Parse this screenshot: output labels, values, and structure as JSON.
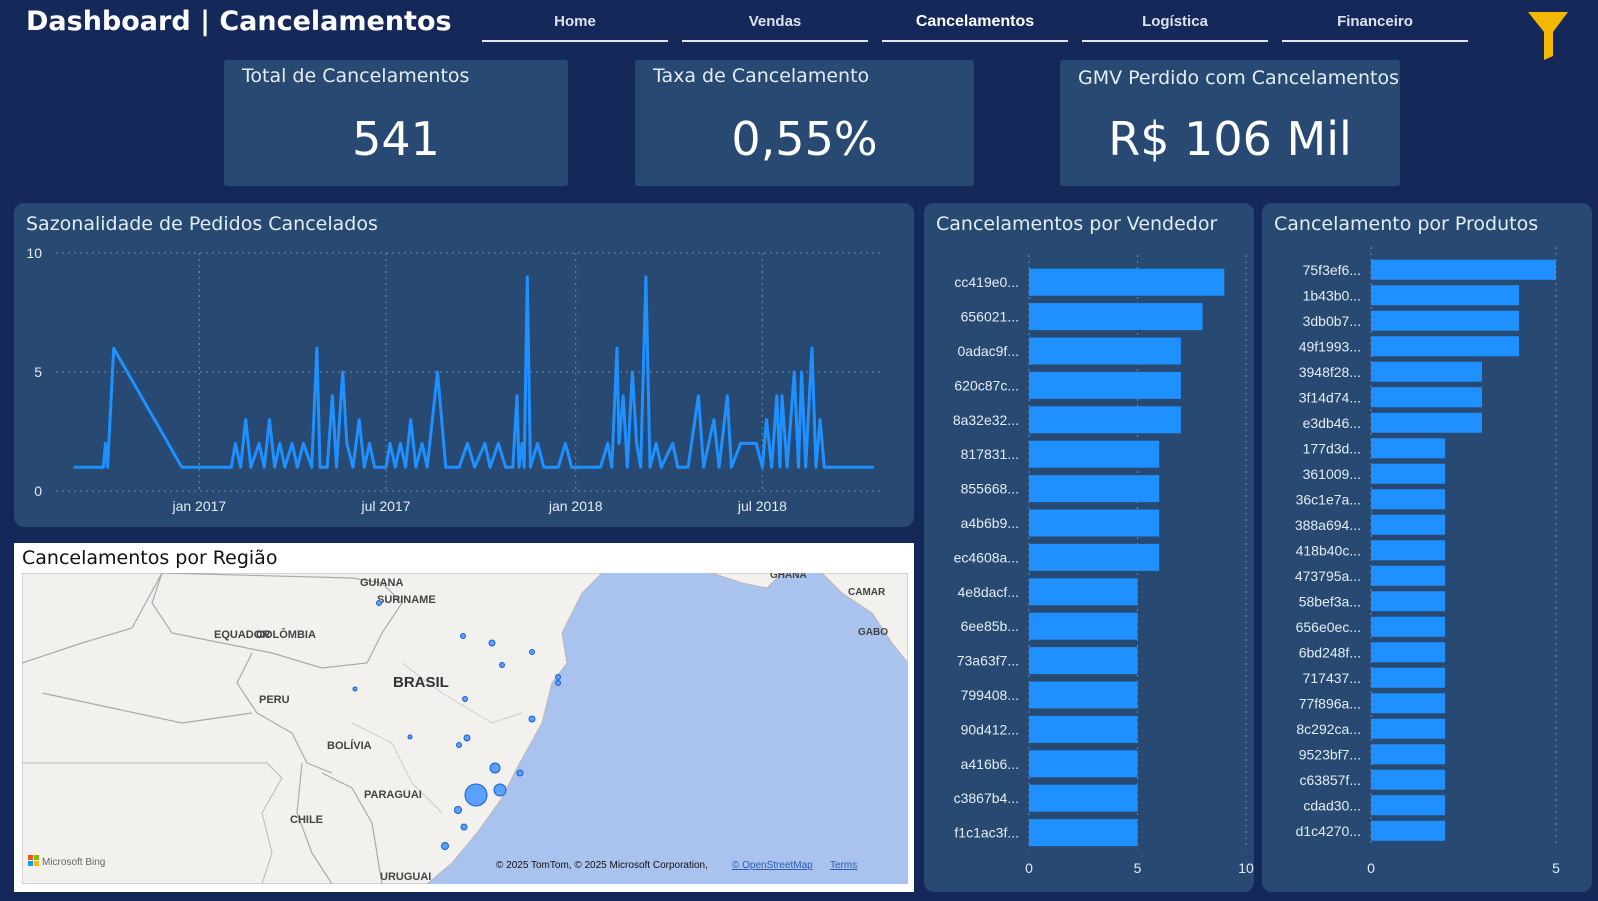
{
  "header": {
    "title": "Dashboard | Cancelamentos",
    "nav": [
      {
        "label": "Home",
        "active": false
      },
      {
        "label": "Vendas",
        "active": false
      },
      {
        "label": "Cancelamentos",
        "active": true
      },
      {
        "label": "Logística",
        "active": false
      },
      {
        "label": "Financeiro",
        "active": false
      }
    ],
    "filter_icon": "funnel-icon",
    "filter_color": "#f5b800"
  },
  "kpis": [
    {
      "label": "Total de Cancelamentos",
      "value": "541"
    },
    {
      "label": "Taxa de Cancelamento",
      "value": "0,55%"
    },
    {
      "label": "GMV Perdido com Cancelamentos",
      "value": "R$ 106 Mil"
    }
  ],
  "colors": {
    "accent": "#1e90ff",
    "card": "#284a72",
    "background": "#14295a"
  },
  "seasonality": {
    "title": "Sazonalidade de Pedidos Cancelados",
    "chart_data": {
      "type": "line",
      "y_ticks": [
        "0",
        "5",
        "10"
      ],
      "ylim": [
        0,
        10
      ],
      "x_tick_labels": [
        "jan 2017",
        "jul 2017",
        "jan 2018",
        "jul 2018"
      ],
      "x_ticks": [
        "2017-01-01",
        "2017-07-01",
        "2018-01-01",
        "2018-07-01"
      ],
      "xlim": [
        "2016-08-15",
        "2018-10-25"
      ],
      "points": [
        [
          "2016-09-01",
          1
        ],
        [
          "2016-09-30",
          1
        ],
        [
          "2016-10-02",
          2
        ],
        [
          "2016-10-04",
          1
        ],
        [
          "2016-10-10",
          6
        ],
        [
          "2016-12-15",
          1
        ],
        [
          "2017-01-20",
          1
        ],
        [
          "2017-02-01",
          1
        ],
        [
          "2017-02-05",
          2
        ],
        [
          "2017-02-10",
          1
        ],
        [
          "2017-02-15",
          3
        ],
        [
          "2017-02-20",
          1
        ],
        [
          "2017-02-28",
          2
        ],
        [
          "2017-03-05",
          1
        ],
        [
          "2017-03-10",
          3
        ],
        [
          "2017-03-15",
          1
        ],
        [
          "2017-03-20",
          2
        ],
        [
          "2017-03-25",
          1
        ],
        [
          "2017-04-01",
          2
        ],
        [
          "2017-04-06",
          1
        ],
        [
          "2017-04-12",
          2
        ],
        [
          "2017-04-20",
          1
        ],
        [
          "2017-04-25",
          6
        ],
        [
          "2017-04-28",
          1
        ],
        [
          "2017-05-05",
          1
        ],
        [
          "2017-05-10",
          4
        ],
        [
          "2017-05-14",
          1
        ],
        [
          "2017-05-20",
          5
        ],
        [
          "2017-05-24",
          2
        ],
        [
          "2017-05-30",
          1
        ],
        [
          "2017-06-05",
          3
        ],
        [
          "2017-06-10",
          1
        ],
        [
          "2017-06-15",
          2
        ],
        [
          "2017-06-20",
          1
        ],
        [
          "2017-07-01",
          1
        ],
        [
          "2017-07-05",
          2
        ],
        [
          "2017-07-10",
          1
        ],
        [
          "2017-07-15",
          2
        ],
        [
          "2017-07-20",
          1
        ],
        [
          "2017-07-25",
          3
        ],
        [
          "2017-07-30",
          1
        ],
        [
          "2017-08-05",
          2
        ],
        [
          "2017-08-10",
          1
        ],
        [
          "2017-08-15",
          3
        ],
        [
          "2017-08-20",
          5
        ],
        [
          "2017-08-28",
          1
        ],
        [
          "2017-09-10",
          1
        ],
        [
          "2017-09-18",
          2
        ],
        [
          "2017-09-25",
          1
        ],
        [
          "2017-10-05",
          2
        ],
        [
          "2017-10-10",
          1
        ],
        [
          "2017-10-18",
          2
        ],
        [
          "2017-10-25",
          1
        ],
        [
          "2017-11-01",
          1
        ],
        [
          "2017-11-05",
          4
        ],
        [
          "2017-11-07",
          1
        ],
        [
          "2017-11-10",
          2
        ],
        [
          "2017-11-12",
          1
        ],
        [
          "2017-11-15",
          9
        ],
        [
          "2017-11-18",
          1
        ],
        [
          "2017-11-25",
          2
        ],
        [
          "2017-12-01",
          1
        ],
        [
          "2017-12-15",
          1
        ],
        [
          "2017-12-22",
          2
        ],
        [
          "2017-12-28",
          1
        ],
        [
          "2018-01-10",
          1
        ],
        [
          "2018-01-25",
          1
        ],
        [
          "2018-02-01",
          2
        ],
        [
          "2018-02-05",
          1
        ],
        [
          "2018-02-10",
          6
        ],
        [
          "2018-02-12",
          2
        ],
        [
          "2018-02-16",
          4
        ],
        [
          "2018-02-20",
          1
        ],
        [
          "2018-02-25",
          5
        ],
        [
          "2018-03-01",
          2
        ],
        [
          "2018-03-05",
          1
        ],
        [
          "2018-03-10",
          9
        ],
        [
          "2018-03-14",
          1
        ],
        [
          "2018-03-20",
          2
        ],
        [
          "2018-03-25",
          1
        ],
        [
          "2018-04-05",
          2
        ],
        [
          "2018-04-10",
          1
        ],
        [
          "2018-04-20",
          1
        ],
        [
          "2018-04-30",
          4
        ],
        [
          "2018-05-05",
          1
        ],
        [
          "2018-05-15",
          3
        ],
        [
          "2018-05-20",
          1
        ],
        [
          "2018-05-28",
          4
        ],
        [
          "2018-06-01",
          1
        ],
        [
          "2018-06-10",
          2
        ],
        [
          "2018-06-25",
          2
        ],
        [
          "2018-07-01",
          1
        ],
        [
          "2018-07-05",
          3
        ],
        [
          "2018-07-10",
          1
        ],
        [
          "2018-07-15",
          4
        ],
        [
          "2018-07-18",
          1
        ],
        [
          "2018-07-20",
          4
        ],
        [
          "2018-07-25",
          1
        ],
        [
          "2018-08-01",
          5
        ],
        [
          "2018-08-05",
          1
        ],
        [
          "2018-08-08",
          5
        ],
        [
          "2018-08-12",
          1
        ],
        [
          "2018-08-18",
          6
        ],
        [
          "2018-08-22",
          1
        ],
        [
          "2018-08-26",
          3
        ],
        [
          "2018-08-30",
          1
        ],
        [
          "2018-10-17",
          1
        ]
      ]
    }
  },
  "map": {
    "title": "Cancelamentos por Região",
    "labels": {
      "colombia": "COLÔMBIA",
      "guiana": "GUIANA",
      "suriname": "SURINAME",
      "equador": "EQUADOR",
      "peru": "PERU",
      "brasil": "BRASIL",
      "bolivia": "BOLÍVIA",
      "paraguai": "PARAGUAI",
      "chile": "CHILE",
      "uruguai": "URUGUAI",
      "ghana": "GHANA",
      "camar": "CAMAR",
      "gabo": "GABO"
    },
    "credits": "© 2025 TomTom, © 2025 Microsoft Corporation,",
    "osm": "© OpenStreetMap",
    "terms": "Terms",
    "bing": "Microsoft Bing"
  },
  "vendors": {
    "title": "Cancelamentos por Vendedor",
    "chart_data": {
      "type": "bar",
      "orientation": "horizontal",
      "categories": [
        "cc419e0...",
        "656021...",
        "0adac9f...",
        "620c87c...",
        "8a32e32...",
        "817831...",
        "855668...",
        "a4b6b9...",
        "ec4608a...",
        "4e8dacf...",
        "6ee85b...",
        "73a63f7...",
        "799408...",
        "90d412...",
        "a416b6...",
        "c3867b4...",
        "f1c1ac3f..."
      ],
      "values": [
        9,
        8,
        7,
        7,
        7,
        6,
        6,
        6,
        6,
        5,
        5,
        5,
        5,
        5,
        5,
        5,
        5
      ],
      "xlim": [
        0,
        10
      ],
      "x_ticks": [
        "0",
        "5",
        "10"
      ]
    }
  },
  "products": {
    "title": "Cancelamento por Produtos",
    "chart_data": {
      "type": "bar",
      "orientation": "horizontal",
      "categories": [
        "75f3ef6...",
        "1b43b0...",
        "3db0b7...",
        "49f1993...",
        "3948f28...",
        "3f14d74...",
        "e3db46...",
        "177d3d...",
        "361009...",
        "36c1e7a...",
        "388a694...",
        "418b40c...",
        "473795a...",
        "58bef3a...",
        "656e0ec...",
        "6bd248f...",
        "717437...",
        "77f896a...",
        "8c292ca...",
        "9523bf7...",
        "c63857f...",
        "cdad30...",
        "d1c4270..."
      ],
      "values": [
        5,
        4,
        4,
        4,
        3,
        3,
        3,
        2,
        2,
        2,
        2,
        2,
        2,
        2,
        2,
        2,
        2,
        2,
        2,
        2,
        2,
        2,
        2
      ],
      "xlim": [
        0,
        5
      ],
      "x_ticks": [
        "0",
        "5"
      ]
    }
  }
}
